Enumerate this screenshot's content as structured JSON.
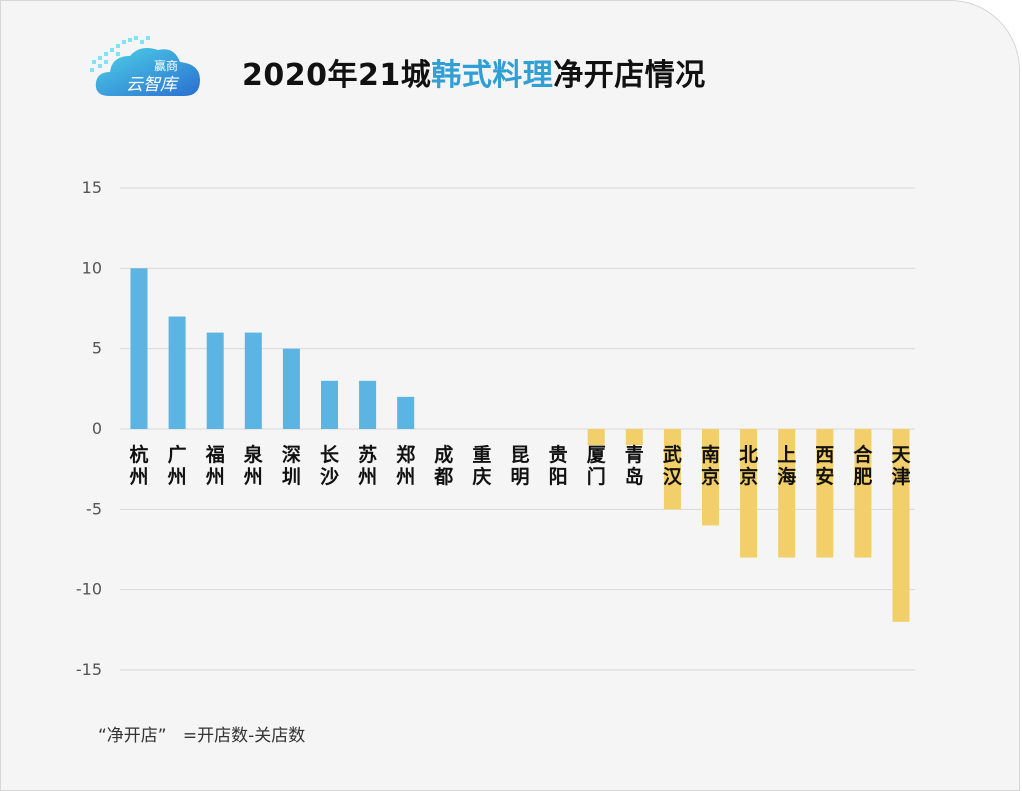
{
  "header": {
    "logo_line1": "赢商",
    "logo_line2": "云智库",
    "title_prefix": "2020年21城",
    "title_highlight": "韩式料理",
    "title_suffix": "净开店情况"
  },
  "footnote": "“净开店”   =开店数-关店数",
  "colors": {
    "positive": "#5bb4e1",
    "negative": "#f2cf68",
    "accent": "#2f9fd6"
  },
  "chart_data": {
    "type": "bar",
    "title": "2020年21城韩式料理净开店情况",
    "xlabel": "",
    "ylabel": "",
    "ylim": [
      -15,
      15
    ],
    "yticks": [
      15,
      10,
      5,
      0,
      -5,
      -10,
      -15
    ],
    "grid": true,
    "categories": [
      "杭州",
      "广州",
      "福州",
      "泉州",
      "深圳",
      "长沙",
      "苏州",
      "郑州",
      "成都",
      "重庆",
      "昆明",
      "贵阳",
      "厦门",
      "青岛",
      "武汉",
      "南京",
      "北京",
      "上海",
      "西安",
      "合肥",
      "天津"
    ],
    "values": [
      10,
      7,
      6,
      6,
      5,
      3,
      3,
      2,
      0,
      0,
      0,
      0,
      -1,
      -1,
      -5,
      -6,
      -8,
      -8,
      -8,
      -8,
      -12
    ]
  }
}
